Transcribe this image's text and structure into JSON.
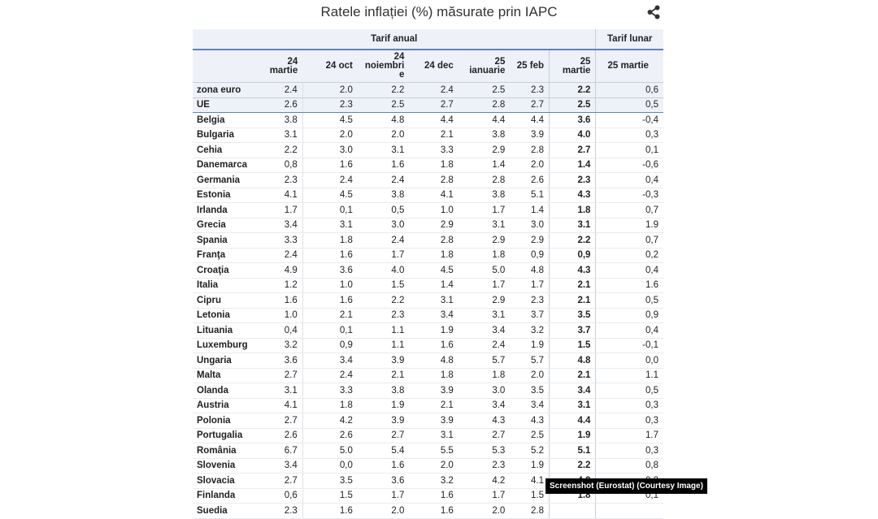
{
  "title": "Ratele inflației (%) măsurate prin IAPC",
  "share_icon": "share-icon",
  "groups": {
    "annual": "Tarif anual",
    "monthly": "Tarif lunar"
  },
  "columns": [
    [
      "24",
      "martie"
    ],
    [
      "24 oct"
    ],
    [
      "24",
      "noiembri",
      "e"
    ],
    [
      "24 dec"
    ],
    [
      "25",
      "ianuarie"
    ],
    [
      "25 feb"
    ],
    [
      "25",
      "martie"
    ],
    [
      "25 martie"
    ]
  ],
  "rows": [
    {
      "name": "zona euro",
      "v": [
        "2.4",
        "2.0",
        "2.2",
        "2.4",
        "2.5",
        "2.3",
        "2.2",
        "0,6"
      ]
    },
    {
      "name": "UE",
      "v": [
        "2.6",
        "2.3",
        "2.5",
        "2.7",
        "2.8",
        "2.7",
        "2.5",
        "0,5"
      ]
    },
    {
      "name": "Belgia",
      "v": [
        "3.8",
        "4.5",
        "4.8",
        "4.4",
        "4.4",
        "4.4",
        "3.6",
        "-0,4"
      ]
    },
    {
      "name": "Bulgaria",
      "v": [
        "3.1",
        "2.0",
        "2.0",
        "2.1",
        "3.8",
        "3.9",
        "4.0",
        "0,3"
      ]
    },
    {
      "name": "Cehia",
      "v": [
        "2.2",
        "3.0",
        "3.1",
        "3.3",
        "2.9",
        "2.8",
        "2.7",
        "0,1"
      ]
    },
    {
      "name": "Danemarca",
      "v": [
        "0,8",
        "1.6",
        "1.6",
        "1.8",
        "1.4",
        "2.0",
        "1.4",
        "-0,6"
      ]
    },
    {
      "name": "Germania",
      "v": [
        "2.3",
        "2.4",
        "2.4",
        "2.8",
        "2.8",
        "2.6",
        "2.3",
        "0,4"
      ]
    },
    {
      "name": "Estonia",
      "v": [
        "4.1",
        "4.5",
        "3.8",
        "4.1",
        "3.8",
        "5.1",
        "4.3",
        "-0,3"
      ]
    },
    {
      "name": "Irlanda",
      "v": [
        "1.7",
        "0,1",
        "0,5",
        "1.0",
        "1.7",
        "1.4",
        "1.8",
        "0,7"
      ]
    },
    {
      "name": "Grecia",
      "v": [
        "3.4",
        "3.1",
        "3.0",
        "2.9",
        "3.1",
        "3.0",
        "3.1",
        "1.9"
      ]
    },
    {
      "name": "Spania",
      "v": [
        "3.3",
        "1.8",
        "2.4",
        "2.8",
        "2.9",
        "2.9",
        "2.2",
        "0,7"
      ]
    },
    {
      "name": "Franţa",
      "v": [
        "2.4",
        "1.6",
        "1.7",
        "1.8",
        "1.8",
        "0,9",
        "0,9",
        "0,2"
      ]
    },
    {
      "name": "Croaţia",
      "v": [
        "4.9",
        "3.6",
        "4.0",
        "4.5",
        "5.0",
        "4.8",
        "4.3",
        "0,4"
      ]
    },
    {
      "name": "Italia",
      "v": [
        "1.2",
        "1.0",
        "1.5",
        "1.4",
        "1.7",
        "1.7",
        "2.1",
        "1.6"
      ]
    },
    {
      "name": "Cipru",
      "v": [
        "1.6",
        "1.6",
        "2.2",
        "3.1",
        "2.9",
        "2.3",
        "2.1",
        "0,5"
      ]
    },
    {
      "name": "Letonia",
      "v": [
        "1.0",
        "2.1",
        "2.3",
        "3.4",
        "3.1",
        "3.7",
        "3.5",
        "0,9"
      ]
    },
    {
      "name": "Lituania",
      "v": [
        "0,4",
        "0,1",
        "1.1",
        "1.9",
        "3.4",
        "3.2",
        "3.7",
        "0,4"
      ]
    },
    {
      "name": "Luxemburg",
      "v": [
        "3.2",
        "0,9",
        "1.1",
        "1.6",
        "2.4",
        "1.9",
        "1.5",
        "-0,1"
      ]
    },
    {
      "name": "Ungaria",
      "v": [
        "3.6",
        "3.4",
        "3.9",
        "4.8",
        "5.7",
        "5.7",
        "4.8",
        "0,0"
      ]
    },
    {
      "name": "Malta",
      "v": [
        "2.7",
        "2.4",
        "2.1",
        "1.8",
        "1.8",
        "2.0",
        "2.1",
        "1.1"
      ]
    },
    {
      "name": "Olanda",
      "v": [
        "3.1",
        "3.3",
        "3.8",
        "3.9",
        "3.0",
        "3.5",
        "3.4",
        "0,5"
      ]
    },
    {
      "name": "Austria",
      "v": [
        "4.1",
        "1.8",
        "1.9",
        "2.1",
        "3.4",
        "3.4",
        "3.1",
        "0,3"
      ]
    },
    {
      "name": "Polonia",
      "v": [
        "2.7",
        "4.2",
        "3.9",
        "3.9",
        "4.3",
        "4.3",
        "4.4",
        "0,3"
      ]
    },
    {
      "name": "Portugalia",
      "v": [
        "2.6",
        "2.6",
        "2.7",
        "3.1",
        "2.7",
        "2.5",
        "1.9",
        "1.7"
      ]
    },
    {
      "name": "România",
      "v": [
        "6.7",
        "5.0",
        "5.4",
        "5.5",
        "5.3",
        "5.2",
        "5.1",
        "0,3"
      ]
    },
    {
      "name": "Slovenia",
      "v": [
        "3.4",
        "0,0",
        "1.6",
        "2.0",
        "2.3",
        "1.9",
        "2.2",
        "0,8"
      ]
    },
    {
      "name": "Slovacia",
      "v": [
        "2.7",
        "3.5",
        "3.6",
        "3.2",
        "4.2",
        "4.1",
        "4.2",
        "0,3"
      ]
    },
    {
      "name": "Finlanda",
      "v": [
        "0,6",
        "1.5",
        "1.7",
        "1.6",
        "1.7",
        "1.5",
        "1.8",
        "0,1"
      ]
    },
    {
      "name": "Suedia",
      "v": [
        "2.3",
        "1.6",
        "2.0",
        "1.6",
        "2.0",
        "2.8",
        "",
        ""
      ]
    }
  ],
  "credit": "Screenshot (Eurostat) (Courtesy Image)",
  "colors": {
    "header_bg": "#eef2f8",
    "accent_line": "#5b82c6"
  }
}
